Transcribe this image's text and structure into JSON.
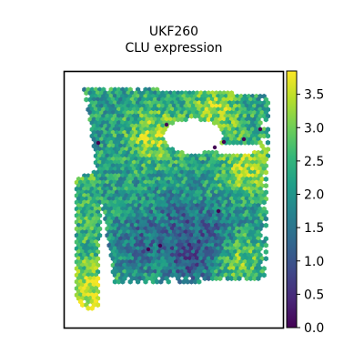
{
  "chart_data": {
    "type": "scatter",
    "title_lines": [
      "UKF260",
      "CLU expression"
    ],
    "xlabel": "",
    "ylabel": "",
    "marker": "hexagon",
    "frame": "box",
    "grid": false,
    "colorbar": {
      "colormap": "viridis",
      "range": [
        0.0,
        3.85
      ],
      "ticks": [
        0.0,
        0.5,
        1.0,
        1.5,
        2.0,
        2.5,
        3.0,
        3.5
      ],
      "tick_labels": [
        "0.0",
        "0.5",
        "1.0",
        "1.5",
        "2.0",
        "2.5",
        "3.0",
        "3.5"
      ],
      "placement": "right"
    },
    "regions": {
      "main_tissue": {
        "shape": "quadrilateral",
        "corner_points": [
          [
            92,
            95
          ],
          [
            296,
            104
          ],
          [
            292,
            308
          ],
          [
            126,
            312
          ]
        ],
        "typical_value": 2.2
      },
      "left_strip": {
        "shape": "quadrilateral",
        "corner_points": [
          [
            84,
            196
          ],
          [
            111,
            186
          ],
          [
            108,
            342
          ],
          [
            84,
            336
          ]
        ],
        "typical_value": 2.5
      },
      "upper_hole": {
        "center": [
          212,
          150
        ],
        "radii": [
          33,
          19
        ]
      },
      "right_hole": {
        "center": [
          258,
          163
        ],
        "radii": [
          29,
          6
        ]
      }
    },
    "high_expression_areas": [
      {
        "center": [
          170,
          150
        ],
        "value": 3.4
      },
      {
        "center": [
          238,
          122
        ],
        "value": 3.3
      },
      {
        "center": [
          272,
          185
        ],
        "value": 3.4
      },
      {
        "center": [
          258,
          282
        ],
        "value": 3.3
      },
      {
        "center": [
          96,
          322
        ],
        "value": 3.4
      }
    ],
    "low_expression_areas": [
      {
        "center": [
          208,
          290
        ],
        "value": 1.3
      },
      {
        "center": [
          150,
          268
        ],
        "value": 1.4
      },
      {
        "center": [
          238,
          262
        ],
        "value": 1.3
      },
      {
        "center": [
          195,
          240
        ],
        "value": 1.5
      }
    ],
    "zero_expression_spots": [
      [
        108,
        157
      ],
      [
        183,
        137
      ],
      [
        286,
        142
      ],
      [
        236,
        162
      ],
      [
        246,
        156
      ],
      [
        176,
        270
      ],
      [
        240,
        232
      ],
      [
        163,
        274
      ],
      [
        268,
        153
      ]
    ]
  },
  "colors": {
    "viridis_stops": [
      "#440154",
      "#482878",
      "#3e4989",
      "#31688e",
      "#26828e",
      "#1f9e89",
      "#35b779",
      "#6ece58",
      "#b5de2b",
      "#fde725"
    ],
    "frame": "#000000",
    "text": "#000000"
  }
}
